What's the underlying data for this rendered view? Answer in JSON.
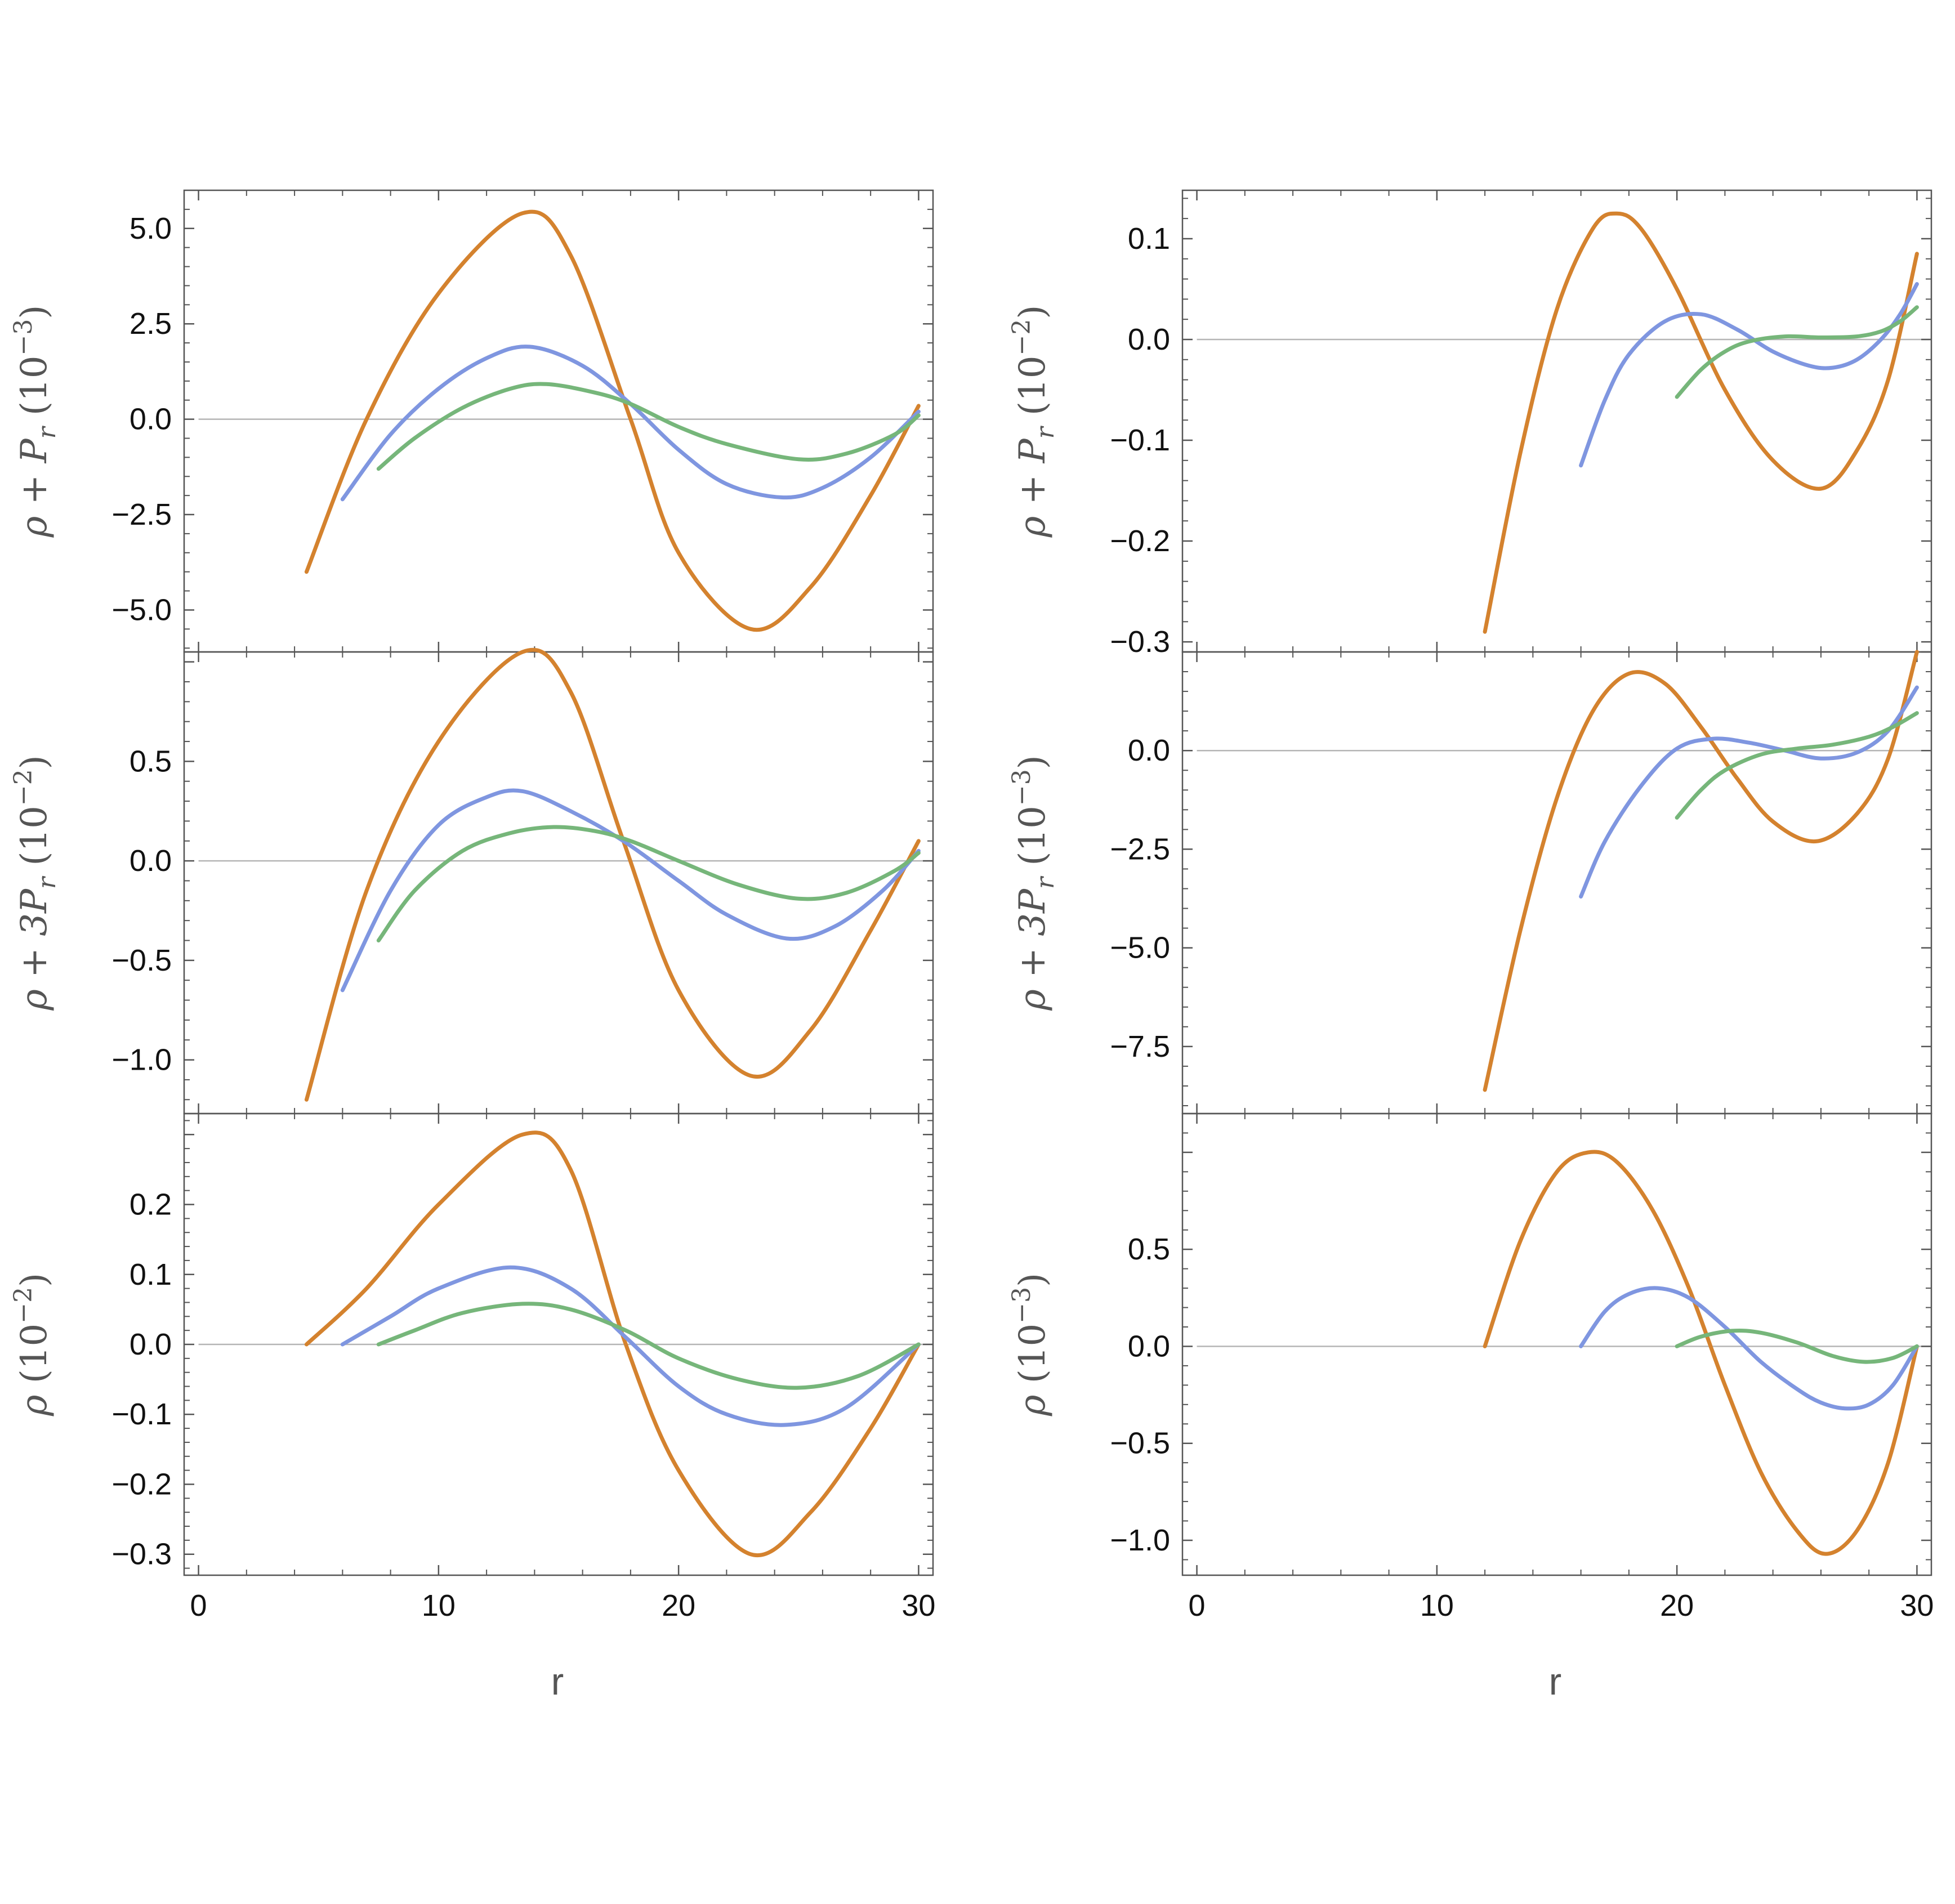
{
  "colors": {
    "orange": "#d4822e",
    "blue": "#7f96e0",
    "green": "#76b67a"
  },
  "x_label": "r",
  "chart_data": [
    {
      "type": "line",
      "id": "left-top",
      "ylabel": "ρ + P_r (10^-3)",
      "ylabel_parts": [
        "ρ + P",
        "r",
        " (10",
        "−3",
        ")"
      ],
      "xlim": [
        -0.6,
        30.6
      ],
      "ylim": [
        -6.1,
        6.0
      ],
      "xticks": [
        0,
        10,
        20,
        30
      ],
      "yticks": [
        -5,
        -2.5,
        0,
        2.5,
        5
      ],
      "ytick_labels": [
        "−5.0",
        "−2.5",
        "0.0",
        "2.5",
        "5.0"
      ],
      "series": [
        {
          "color": "orange",
          "x": [
            4.5,
            7.0,
            10.0,
            13.5,
            15.5,
            18.0,
            20.0,
            23.0,
            25.5,
            28.0,
            30.0
          ],
          "y": [
            -4.0,
            0.0,
            3.3,
            5.4,
            4.3,
            0.0,
            -3.5,
            -5.5,
            -4.4,
            -2.0,
            0.35
          ]
        },
        {
          "color": "blue",
          "x": [
            6.0,
            8.0,
            10.0,
            12.0,
            13.8,
            16.0,
            18.0,
            20.0,
            22.0,
            24.3,
            26.0,
            28.0,
            30.0
          ],
          "y": [
            -2.1,
            -0.4,
            0.8,
            1.6,
            1.9,
            1.4,
            0.4,
            -0.8,
            -1.7,
            -2.05,
            -1.8,
            -1.0,
            0.2
          ]
        },
        {
          "color": "green",
          "x": [
            7.5,
            9.0,
            11.0,
            13.0,
            14.5,
            16.5,
            18.0,
            20.0,
            22.0,
            25.0,
            27.0,
            29.0,
            30.0
          ],
          "y": [
            -1.3,
            -0.5,
            0.3,
            0.8,
            0.92,
            0.7,
            0.4,
            -0.2,
            -0.65,
            -1.05,
            -0.9,
            -0.4,
            0.1
          ]
        }
      ]
    },
    {
      "type": "line",
      "id": "left-middle",
      "ylabel": "ρ + 3P_r (10^-2)",
      "ylabel_parts": [
        "ρ + 3P",
        "r",
        " (10",
        "−2",
        ")"
      ],
      "xlim": [
        -0.6,
        30.6
      ],
      "ylim": [
        -1.27,
        1.05
      ],
      "xticks": [
        0,
        10,
        20,
        30
      ],
      "yticks": [
        -1.0,
        -0.5,
        0.0,
        0.5
      ],
      "ytick_labels": [
        "−1.0",
        "−0.5",
        "0.0",
        "0.5"
      ],
      "series": [
        {
          "color": "orange",
          "x": [
            4.5,
            7.0,
            10.0,
            13.5,
            15.5,
            17.7,
            20.0,
            23.0,
            25.5,
            28.0,
            30.0
          ],
          "y": [
            -1.2,
            -0.15,
            0.6,
            1.05,
            0.85,
            0.1,
            -0.65,
            -1.08,
            -0.85,
            -0.35,
            0.1
          ]
        },
        {
          "color": "blue",
          "x": [
            6.0,
            8.0,
            10.0,
            12.0,
            13.5,
            15.5,
            17.7,
            20.0,
            22.0,
            24.5,
            26.5,
            28.5,
            30.0
          ],
          "y": [
            -0.65,
            -0.15,
            0.18,
            0.32,
            0.35,
            0.25,
            0.1,
            -0.1,
            -0.27,
            -0.39,
            -0.33,
            -0.15,
            0.05
          ]
        },
        {
          "color": "green",
          "x": [
            7.5,
            9.0,
            11.0,
            13.0,
            14.8,
            16.5,
            18.0,
            20.0,
            22.5,
            25.0,
            27.0,
            29.0,
            30.0
          ],
          "y": [
            -0.4,
            -0.15,
            0.05,
            0.14,
            0.17,
            0.15,
            0.1,
            0.0,
            -0.12,
            -0.19,
            -0.16,
            -0.05,
            0.04
          ]
        }
      ]
    },
    {
      "type": "line",
      "id": "left-bottom",
      "ylabel": "ρ (10^-2)",
      "ylabel_parts": [
        "ρ",
        "",
        "  (10",
        "−2",
        ")"
      ],
      "xlim": [
        -0.6,
        30.6
      ],
      "ylim": [
        -0.33,
        0.33
      ],
      "xticks": [
        0,
        10,
        20,
        30
      ],
      "yticks": [
        -0.3,
        -0.2,
        -0.1,
        0.0,
        0.1,
        0.2
      ],
      "ytick_labels": [
        "−0.3",
        "−0.2",
        "−0.1",
        "0.0",
        "0.1",
        "0.2"
      ],
      "xtick_labels": [
        "0",
        "10",
        "20",
        "30"
      ],
      "series": [
        {
          "color": "orange",
          "x": [
            4.5,
            7.0,
            10.0,
            13.5,
            15.5,
            17.8,
            20.0,
            23.0,
            25.5,
            28.0,
            30.0
          ],
          "y": [
            0.0,
            0.08,
            0.2,
            0.3,
            0.25,
            0.0,
            -0.18,
            -0.3,
            -0.24,
            -0.12,
            0.0
          ]
        },
        {
          "color": "blue",
          "x": [
            6.0,
            8.0,
            10.0,
            13.0,
            15.5,
            17.8,
            20.0,
            22.0,
            24.5,
            27.0,
            30.0
          ],
          "y": [
            0.0,
            0.04,
            0.08,
            0.11,
            0.08,
            0.01,
            -0.06,
            -0.1,
            -0.115,
            -0.09,
            0.0
          ]
        },
        {
          "color": "green",
          "x": [
            7.5,
            9.0,
            11.0,
            13.5,
            15.5,
            17.8,
            20.0,
            22.5,
            25.0,
            27.5,
            30.0
          ],
          "y": [
            0.0,
            0.02,
            0.045,
            0.058,
            0.05,
            0.02,
            -0.02,
            -0.05,
            -0.062,
            -0.045,
            0.0
          ]
        }
      ]
    },
    {
      "type": "line",
      "id": "right-top",
      "ylabel": "ρ + P_r (10^-2)",
      "ylabel_parts": [
        "ρ + P",
        "r",
        " (10",
        "−2",
        ")"
      ],
      "xlim": [
        -0.6,
        30.6
      ],
      "ylim": [
        -0.31,
        0.148
      ],
      "xticks": [
        0,
        10,
        20,
        30
      ],
      "yticks": [
        -0.3,
        -0.2,
        -0.1,
        0.0,
        0.1
      ],
      "ytick_labels": [
        "−0.3",
        "−0.2",
        "−0.1",
        "0.0",
        "0.1"
      ],
      "series": [
        {
          "color": "orange",
          "x": [
            12.0,
            13.5,
            15.0,
            16.5,
            17.5,
            18.5,
            20.0,
            22.0,
            24.0,
            26.0,
            27.5,
            28.8,
            30.0
          ],
          "y": [
            -0.29,
            -0.11,
            0.03,
            0.11,
            0.125,
            0.11,
            0.05,
            -0.05,
            -0.12,
            -0.148,
            -0.11,
            -0.04,
            0.085
          ]
        },
        {
          "color": "blue",
          "x": [
            16.0,
            17.0,
            18.0,
            19.5,
            21.0,
            22.5,
            24.0,
            25.5,
            26.5,
            27.5,
            28.5,
            29.3,
            30.0
          ],
          "y": [
            -0.125,
            -0.06,
            -0.015,
            0.018,
            0.025,
            0.01,
            -0.012,
            -0.026,
            -0.028,
            -0.02,
            0.0,
            0.025,
            0.055
          ]
        },
        {
          "color": "green",
          "x": [
            20.0,
            21.0,
            22.0,
            23.0,
            24.5,
            26.0,
            27.5,
            28.5,
            29.3,
            30.0
          ],
          "y": [
            -0.057,
            -0.03,
            -0.012,
            -0.002,
            0.003,
            0.002,
            0.003,
            0.008,
            0.018,
            0.032
          ]
        }
      ]
    },
    {
      "type": "line",
      "id": "right-middle",
      "ylabel": "ρ + 3P_r (10^-3)",
      "ylabel_parts": [
        "ρ + 3P",
        "r",
        " (10",
        "−3",
        ")"
      ],
      "xlim": [
        -0.6,
        30.6
      ],
      "ylim": [
        -9.2,
        2.5
      ],
      "xticks": [
        0,
        10,
        20,
        30
      ],
      "yticks": [
        -7.5,
        -5.0,
        -2.5,
        0.0
      ],
      "ytick_labels": [
        "−7.5",
        "−5.0",
        "−2.5",
        "0.0"
      ],
      "series": [
        {
          "color": "orange",
          "x": [
            12.0,
            13.5,
            15.0,
            16.5,
            18.0,
            19.5,
            21.0,
            22.5,
            24.0,
            25.8,
            27.5,
            28.8,
            30.0
          ],
          "y": [
            -8.6,
            -4.5,
            -1.2,
            1.0,
            1.95,
            1.7,
            0.6,
            -0.7,
            -1.8,
            -2.3,
            -1.6,
            -0.2,
            2.5
          ]
        },
        {
          "color": "blue",
          "x": [
            16.0,
            17.0,
            18.5,
            20.0,
            21.5,
            23.0,
            24.5,
            26.0,
            27.5,
            28.8,
            30.0
          ],
          "y": [
            -3.7,
            -2.3,
            -0.9,
            0.05,
            0.3,
            0.2,
            0.0,
            -0.2,
            -0.05,
            0.5,
            1.6
          ]
        },
        {
          "color": "green",
          "x": [
            20.0,
            21.0,
            22.0,
            23.5,
            25.0,
            26.5,
            28.0,
            29.0,
            30.0
          ],
          "y": [
            -1.7,
            -1.0,
            -0.5,
            -0.1,
            0.05,
            0.15,
            0.35,
            0.6,
            0.95
          ]
        }
      ]
    },
    {
      "type": "line",
      "id": "right-bottom",
      "ylabel": "ρ (10^-3)",
      "ylabel_parts": [
        "ρ",
        "",
        "  (10",
        "−3",
        ")"
      ],
      "xlim": [
        -0.6,
        30.6
      ],
      "ylim": [
        -1.18,
        1.2
      ],
      "xticks": [
        0,
        10,
        20,
        30
      ],
      "yticks": [
        -1.0,
        -0.5,
        0.0,
        0.5
      ],
      "ytick_labels": [
        "−1.0",
        "−0.5",
        "0.0",
        "0.5"
      ],
      "xtick_labels": [
        "0",
        "10",
        "20",
        "30"
      ],
      "series": [
        {
          "color": "orange",
          "x": [
            12.0,
            13.5,
            15.0,
            16.3,
            17.5,
            19.0,
            20.5,
            22.0,
            23.5,
            25.0,
            26.2,
            27.5,
            28.8,
            30.0
          ],
          "y": [
            0.0,
            0.55,
            0.9,
            1.0,
            0.95,
            0.7,
            0.3,
            -0.2,
            -0.65,
            -0.95,
            -1.07,
            -0.95,
            -0.6,
            0.0
          ]
        },
        {
          "color": "blue",
          "x": [
            16.0,
            17.0,
            18.0,
            19.2,
            20.5,
            22.0,
            23.5,
            25.0,
            26.0,
            27.0,
            28.0,
            29.0,
            30.0
          ],
          "y": [
            0.0,
            0.18,
            0.27,
            0.3,
            0.25,
            0.1,
            -0.08,
            -0.22,
            -0.29,
            -0.32,
            -0.3,
            -0.2,
            0.0
          ]
        },
        {
          "color": "green",
          "x": [
            20.0,
            21.0,
            22.3,
            23.5,
            25.0,
            26.5,
            27.8,
            29.0,
            30.0
          ],
          "y": [
            0.0,
            0.05,
            0.08,
            0.07,
            0.02,
            -0.05,
            -0.08,
            -0.06,
            0.0
          ]
        }
      ]
    }
  ]
}
